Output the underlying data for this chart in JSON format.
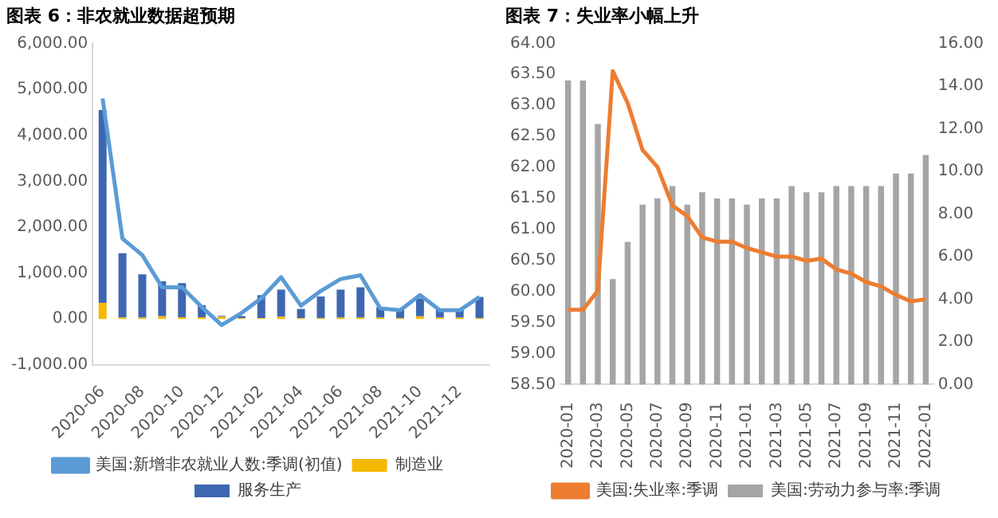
{
  "chart_data": [
    {
      "type": "bar",
      "title": "图表 6：非农就业数据超预期",
      "stacked": true,
      "legend": "bottom",
      "marker": "none",
      "categories": [
        "2020-06",
        null,
        "2020-08",
        null,
        "2020-10",
        null,
        "2020-12",
        null,
        "2021-02",
        null,
        "2021-04",
        null,
        "2021-06",
        null,
        "2021-08",
        null,
        "2021-10",
        null,
        "2021-12",
        null
      ],
      "ylim": [
        -1000,
        6000
      ],
      "yticks": [
        {
          "value": -1000,
          "label": "-1,000.00"
        },
        {
          "value": 0,
          "label": "0.00"
        },
        {
          "value": 1000,
          "label": "1,000.00"
        },
        {
          "value": 2000,
          "label": "2,000.00"
        },
        {
          "value": 3000,
          "label": "3,000.00"
        },
        {
          "value": 4000,
          "label": "4,000.00"
        },
        {
          "value": 5000,
          "label": "5,000.00"
        },
        {
          "value": 6000,
          "label": "6,000.00"
        }
      ],
      "series": [
        {
          "name": "制造业",
          "color": "#f5b800",
          "values": [
            350,
            30,
            30,
            60,
            40,
            40,
            50,
            20,
            20,
            50,
            20,
            20,
            30,
            30,
            30,
            20,
            60,
            30,
            30,
            20
          ]
        },
        {
          "name": "服务生产",
          "color": "#3e67b1",
          "values": [
            4200,
            1400,
            940,
            760,
            740,
            260,
            20,
            45,
            500,
            590,
            200,
            470,
            610,
            660,
            230,
            200,
            390,
            190,
            190,
            460
          ]
        },
        {
          "name": "美国:新增非农就业人数:季调(初值)",
          "type": "line",
          "color": "#5b9bd5",
          "values": [
            4800,
            1750,
            1390,
            690,
            690,
            260,
            -130,
            130,
            450,
            910,
            290,
            610,
            870,
            950,
            230,
            190,
            520,
            190,
            190,
            480
          ]
        }
      ]
    },
    {
      "type": "bar",
      "title": "图表 7：失业率小幅上升",
      "legend": "bottom",
      "marker": "none",
      "categories": [
        "2020-01",
        null,
        "2020-03",
        null,
        "2020-05",
        null,
        "2020-07",
        null,
        "2020-09",
        null,
        "2020-11",
        null,
        "2021-01",
        null,
        "2021-03",
        null,
        "2021-05",
        null,
        "2021-07",
        null,
        "2021-09",
        null,
        "2021-11",
        null,
        "2022-01"
      ],
      "ylim": [
        58.5,
        64
      ],
      "yticks": [
        {
          "value": 58.5,
          "label": "58.50"
        },
        {
          "value": 59,
          "label": "59.00"
        },
        {
          "value": 59.5,
          "label": "59.50"
        },
        {
          "value": 60,
          "label": "60.00"
        },
        {
          "value": 60.5,
          "label": "60.50"
        },
        {
          "value": 61,
          "label": "61.00"
        },
        {
          "value": 61.5,
          "label": "61.50"
        },
        {
          "value": 62,
          "label": "62.00"
        },
        {
          "value": 62.5,
          "label": "62.50"
        },
        {
          "value": 63,
          "label": "63.00"
        },
        {
          "value": 63.5,
          "label": "63.50"
        },
        {
          "value": 64,
          "label": "64.00"
        }
      ],
      "y2lim": [
        0,
        16
      ],
      "y2ticks": [
        {
          "value": 0,
          "label": "0.00"
        },
        {
          "value": 2,
          "label": "2.00"
        },
        {
          "value": 4,
          "label": "4.00"
        },
        {
          "value": 6,
          "label": "6.00"
        },
        {
          "value": 8,
          "label": "8.00"
        },
        {
          "value": 10,
          "label": "10.00"
        },
        {
          "value": 12,
          "label": "12.00"
        },
        {
          "value": 14,
          "label": "14.00"
        },
        {
          "value": 16,
          "label": "16.00"
        }
      ],
      "series": [
        {
          "name": "美国:劳动力参与率:季调",
          "color": "#a5a5a5",
          "values": [
            63.4,
            63.4,
            62.7,
            60.2,
            60.8,
            61.4,
            61.5,
            61.7,
            61.4,
            61.6,
            61.5,
            61.5,
            61.4,
            61.5,
            61.5,
            61.7,
            61.6,
            61.6,
            61.7,
            61.7,
            61.7,
            61.7,
            61.9,
            61.9,
            62.2
          ]
        },
        {
          "name": "美国:失业率:季调",
          "type": "line",
          "axis": "y2",
          "color": "#ed7d31",
          "values": [
            3.5,
            3.5,
            4.4,
            14.7,
            13.2,
            11.0,
            10.2,
            8.4,
            7.9,
            6.9,
            6.7,
            6.7,
            6.4,
            6.2,
            6.0,
            6.0,
            5.8,
            5.9,
            5.4,
            5.2,
            4.8,
            4.6,
            4.2,
            3.9,
            4.0
          ]
        }
      ]
    }
  ]
}
